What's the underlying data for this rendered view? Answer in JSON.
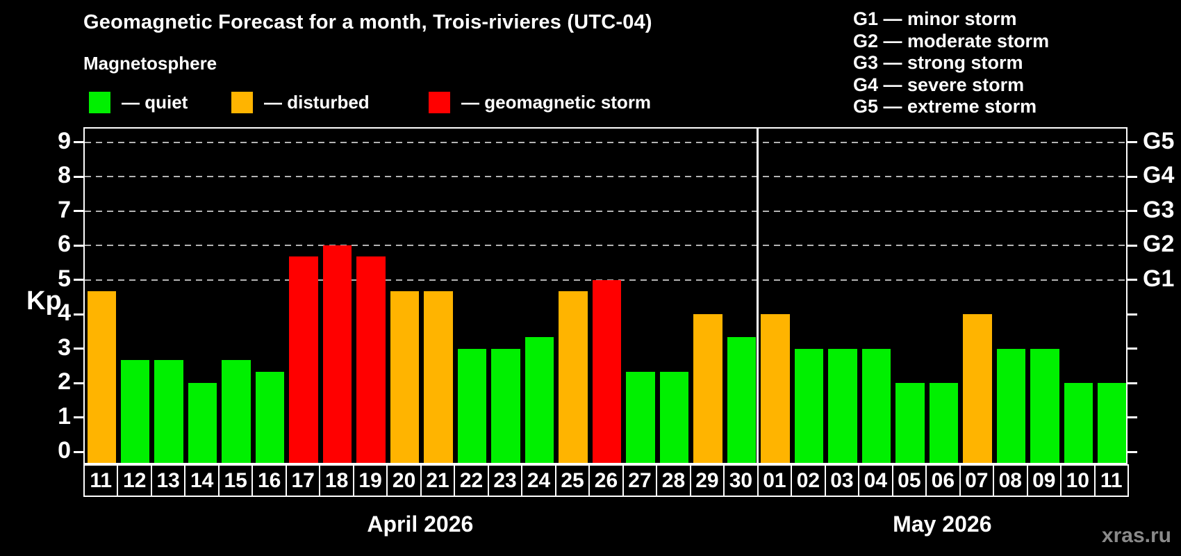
{
  "header": {
    "title": "Geomagnetic Forecast for a month, Trois-rivieres (UTC-04)",
    "subtitle": "Magnetosphere"
  },
  "legend": {
    "items": [
      {
        "state": "quiet",
        "label": "— quiet",
        "color": "#00f000"
      },
      {
        "state": "disturbed",
        "label": "— disturbed",
        "color": "#ffb400"
      },
      {
        "state": "storm",
        "label": "— geomagnetic storm",
        "color": "#ff0000"
      }
    ]
  },
  "g_legend": {
    "items": [
      "G1 — minor storm",
      "G2 — moderate storm",
      "G3 — strong storm",
      "G4 — severe storm",
      "G5 — extreme storm"
    ]
  },
  "axes": {
    "y_label": "Kp",
    "y_ticks": [
      0,
      1,
      2,
      3,
      4,
      5,
      6,
      7,
      8,
      9
    ],
    "g_labels": [
      {
        "kp": 5,
        "label": "G1"
      },
      {
        "kp": 6,
        "label": "G2"
      },
      {
        "kp": 7,
        "label": "G3"
      },
      {
        "kp": 8,
        "label": "G4"
      },
      {
        "kp": 9,
        "label": "G5"
      }
    ]
  },
  "months": [
    {
      "label": "April 2026",
      "span": [
        0,
        20
      ]
    },
    {
      "label": "May 2026",
      "span": [
        20,
        31
      ]
    }
  ],
  "watermark": "xras.ru",
  "chart_data": {
    "type": "bar",
    "title": "Geomagnetic Forecast for a month, Trois-rivieres (UTC-04)",
    "ylabel": "Kp",
    "ylim": [
      0,
      9
    ],
    "grid": "dashed horizontal at Kp 5-9 only",
    "legend_position": "top-left states, top-right G-scale",
    "gridlines_at": [
      5,
      6,
      7,
      8,
      9
    ],
    "separator_after_index": 20,
    "days": [
      {
        "day": "11",
        "month": "April 2026",
        "kp": 4.67,
        "state": "disturbed"
      },
      {
        "day": "12",
        "month": "April 2026",
        "kp": 2.67,
        "state": "quiet"
      },
      {
        "day": "13",
        "month": "April 2026",
        "kp": 2.67,
        "state": "quiet"
      },
      {
        "day": "14",
        "month": "April 2026",
        "kp": 2.0,
        "state": "quiet"
      },
      {
        "day": "15",
        "month": "April 2026",
        "kp": 2.67,
        "state": "quiet"
      },
      {
        "day": "16",
        "month": "April 2026",
        "kp": 2.33,
        "state": "quiet"
      },
      {
        "day": "17",
        "month": "April 2026",
        "kp": 5.67,
        "state": "storm"
      },
      {
        "day": "18",
        "month": "April 2026",
        "kp": 6.0,
        "state": "storm"
      },
      {
        "day": "19",
        "month": "April 2026",
        "kp": 5.67,
        "state": "storm"
      },
      {
        "day": "20",
        "month": "April 2026",
        "kp": 4.67,
        "state": "disturbed"
      },
      {
        "day": "21",
        "month": "April 2026",
        "kp": 4.67,
        "state": "disturbed"
      },
      {
        "day": "22",
        "month": "April 2026",
        "kp": 3.0,
        "state": "quiet"
      },
      {
        "day": "23",
        "month": "April 2026",
        "kp": 3.0,
        "state": "quiet"
      },
      {
        "day": "24",
        "month": "April 2026",
        "kp": 3.33,
        "state": "quiet"
      },
      {
        "day": "25",
        "month": "April 2026",
        "kp": 4.67,
        "state": "disturbed"
      },
      {
        "day": "26",
        "month": "April 2026",
        "kp": 5.0,
        "state": "storm"
      },
      {
        "day": "27",
        "month": "April 2026",
        "kp": 2.33,
        "state": "quiet"
      },
      {
        "day": "28",
        "month": "April 2026",
        "kp": 2.33,
        "state": "quiet"
      },
      {
        "day": "29",
        "month": "April 2026",
        "kp": 4.0,
        "state": "disturbed"
      },
      {
        "day": "30",
        "month": "April 2026",
        "kp": 3.33,
        "state": "quiet"
      },
      {
        "day": "01",
        "month": "May 2026",
        "kp": 4.0,
        "state": "disturbed"
      },
      {
        "day": "02",
        "month": "May 2026",
        "kp": 3.0,
        "state": "quiet"
      },
      {
        "day": "03",
        "month": "May 2026",
        "kp": 3.0,
        "state": "quiet"
      },
      {
        "day": "04",
        "month": "May 2026",
        "kp": 3.0,
        "state": "quiet"
      },
      {
        "day": "05",
        "month": "May 2026",
        "kp": 2.0,
        "state": "quiet"
      },
      {
        "day": "06",
        "month": "May 2026",
        "kp": 2.0,
        "state": "quiet"
      },
      {
        "day": "07",
        "month": "May 2026",
        "kp": 4.0,
        "state": "disturbed"
      },
      {
        "day": "08",
        "month": "May 2026",
        "kp": 3.0,
        "state": "quiet"
      },
      {
        "day": "09",
        "month": "May 2026",
        "kp": 3.0,
        "state": "quiet"
      },
      {
        "day": "10",
        "month": "May 2026",
        "kp": 2.0,
        "state": "quiet"
      },
      {
        "day": "11",
        "month": "May 2026",
        "kp": 2.0,
        "state": "quiet"
      }
    ]
  }
}
